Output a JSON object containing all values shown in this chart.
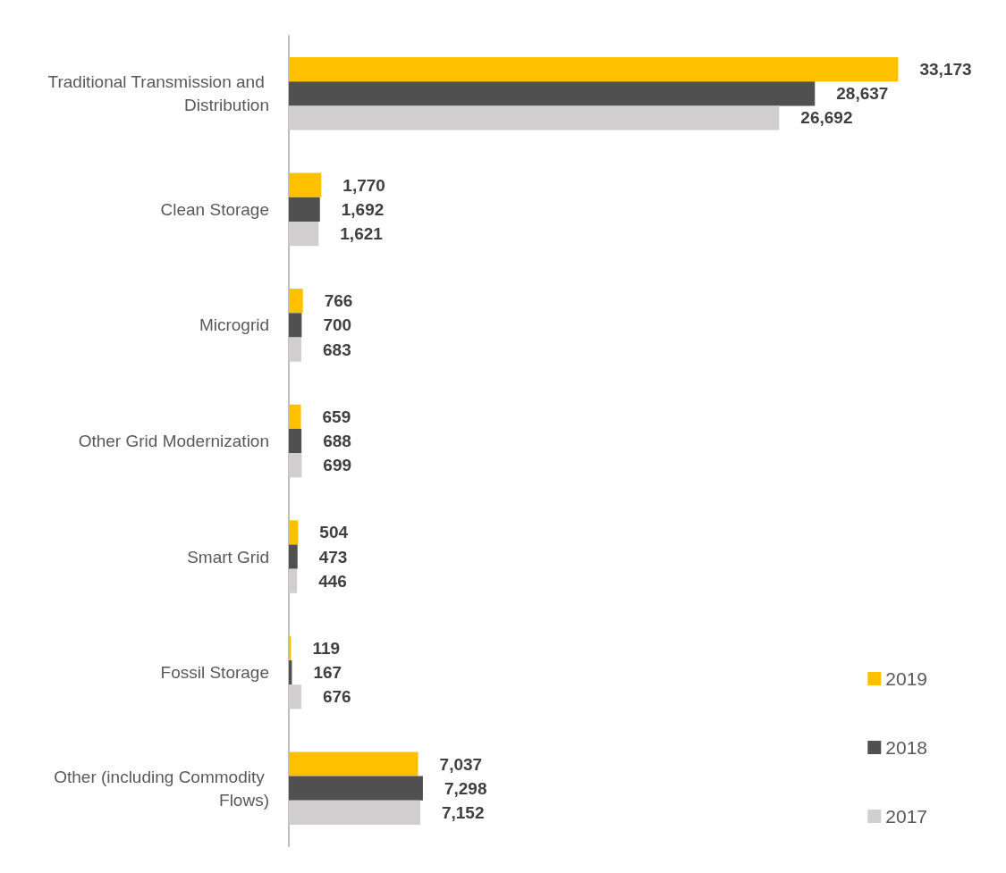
{
  "chart_data": {
    "type": "bar",
    "orientation": "horizontal",
    "categories": [
      "Traditional Transmission and Distribution",
      "Clean Storage",
      "Microgrid",
      "Other Grid Modernization",
      "Smart Grid",
      "Fossil Storage",
      "Other (including Commodity Flows)"
    ],
    "series": [
      {
        "name": "2019",
        "color": "#ffc000",
        "values": [
          33173,
          1770,
          766,
          659,
          504,
          119,
          7037
        ],
        "value_labels": [
          "33,173",
          "1,770",
          "766",
          "659",
          "504",
          "119",
          "7,037"
        ]
      },
      {
        "name": "2018",
        "color": "#505050",
        "values": [
          28637,
          1692,
          700,
          688,
          473,
          167,
          7298
        ],
        "value_labels": [
          "28,637",
          "1,692",
          "700",
          "688",
          "473",
          "167",
          "7,298"
        ]
      },
      {
        "name": "2017",
        "color": "#d0cece",
        "values": [
          26692,
          1621,
          683,
          699,
          446,
          676,
          7152
        ],
        "value_labels": [
          "26,692",
          "1,621",
          "683",
          "699",
          "446",
          "676",
          "7,152"
        ]
      }
    ],
    "legend": "bottom right"
  }
}
